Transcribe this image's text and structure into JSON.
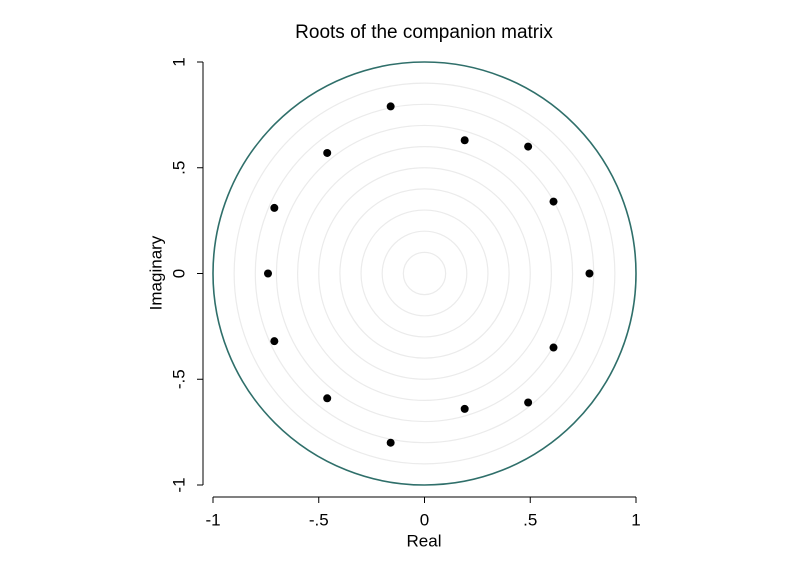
{
  "chart_data": {
    "type": "scatter",
    "title": "Roots of the companion matrix",
    "xlabel": "Real",
    "ylabel": "Imaginary",
    "x": [
      -0.16,
      0.19,
      0.49,
      -0.46,
      0.61,
      -0.71,
      -0.74,
      0.78,
      -0.71,
      0.61,
      -0.46,
      0.49,
      0.19,
      -0.16
    ],
    "y": [
      0.79,
      0.63,
      0.6,
      0.57,
      0.34,
      0.31,
      0,
      0,
      -0.32,
      -0.35,
      -0.59,
      -0.61,
      -0.64,
      -0.8
    ],
    "color": "#000000",
    "circle_color": "#2f6f6a",
    "grid_color": "#ebebeb",
    "xlim": [
      -1,
      1
    ],
    "ylim": [
      -1,
      1
    ],
    "xticks": [
      -1,
      {
        "value": -0.5,
        "label": "-.5"
      },
      0,
      {
        "value": 0.5,
        "label": ".5"
      },
      1
    ],
    "yticks": [
      -1,
      {
        "value": -0.5,
        "label": "-.5"
      },
      0,
      {
        "value": 0.5,
        "label": ".5"
      },
      1
    ]
  }
}
